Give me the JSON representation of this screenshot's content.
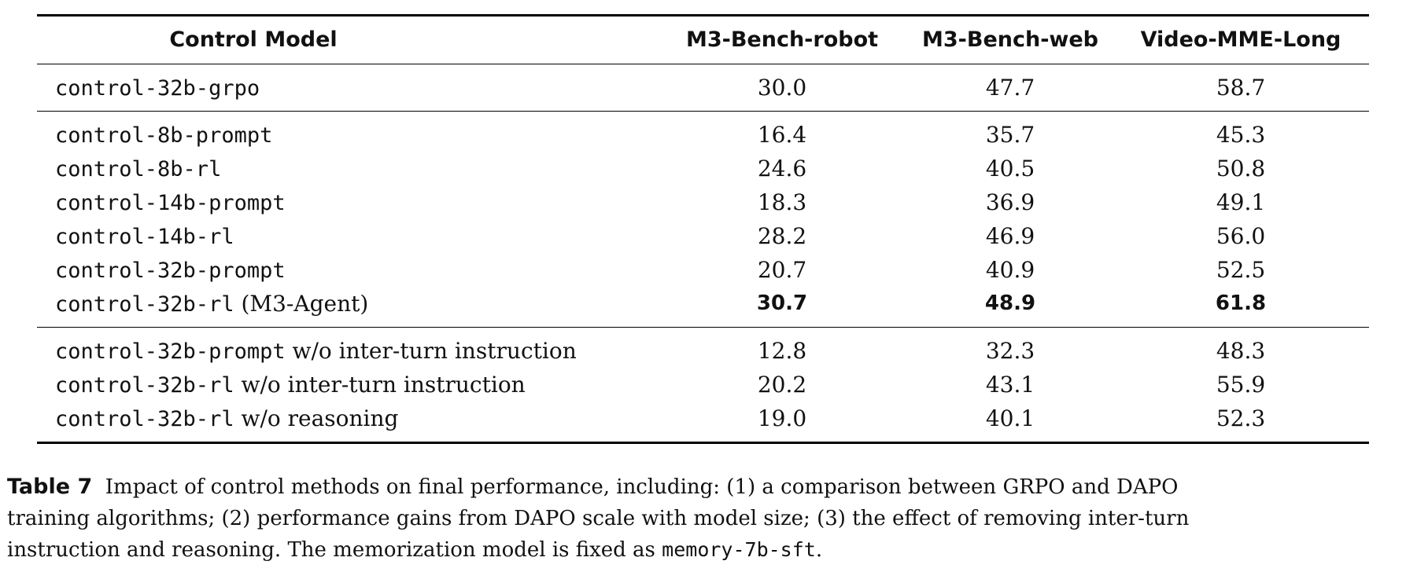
{
  "table": {
    "headers": {
      "model": "Control Model",
      "robot": "M3-Bench-robot",
      "web": "M3-Bench-web",
      "video": "Video-MME-Long"
    },
    "groups": [
      [
        {
          "model_code": "control-32b-grpo",
          "model_suffix": "",
          "robot": "30.0",
          "web": "47.7",
          "video": "58.7",
          "bold": false
        }
      ],
      [
        {
          "model_code": "control-8b-prompt",
          "model_suffix": "",
          "robot": "16.4",
          "web": "35.7",
          "video": "45.3",
          "bold": false
        },
        {
          "model_code": "control-8b-rl",
          "model_suffix": "",
          "robot": "24.6",
          "web": "40.5",
          "video": "50.8",
          "bold": false
        },
        {
          "model_code": "control-14b-prompt",
          "model_suffix": "",
          "robot": "18.3",
          "web": "36.9",
          "video": "49.1",
          "bold": false
        },
        {
          "model_code": "control-14b-rl",
          "model_suffix": "",
          "robot": "28.2",
          "web": "46.9",
          "video": "56.0",
          "bold": false
        },
        {
          "model_code": "control-32b-prompt",
          "model_suffix": "",
          "robot": "20.7",
          "web": "40.9",
          "video": "52.5",
          "bold": false
        },
        {
          "model_code": "control-32b-rl",
          "model_suffix": " (M3-Agent)",
          "robot": "30.7",
          "web": "48.9",
          "video": "61.8",
          "bold": true
        }
      ],
      [
        {
          "model_code": "control-32b-prompt",
          "model_suffix": " w/o inter-turn instruction",
          "robot": "12.8",
          "web": "32.3",
          "video": "48.3",
          "bold": false
        },
        {
          "model_code": "control-32b-rl",
          "model_suffix": " w/o inter-turn instruction",
          "robot": "20.2",
          "web": "43.1",
          "video": "55.9",
          "bold": false
        },
        {
          "model_code": "control-32b-rl",
          "model_suffix": " w/o reasoning",
          "robot": "19.0",
          "web": "40.1",
          "video": "52.3",
          "bold": false
        }
      ]
    ]
  },
  "caption": {
    "label": "Table 7",
    "line1": "Impact of control methods on final performance, including: (1) a comparison between GRPO and DAPO",
    "line2": "training algorithms; (2) performance gains from DAPO scale with model size; (3) the effect of removing inter-turn",
    "line3_prefix": "instruction and reasoning. The memorization model is fixed as ",
    "line3_code": "memory-7b-sft",
    "line3_suffix": "."
  }
}
